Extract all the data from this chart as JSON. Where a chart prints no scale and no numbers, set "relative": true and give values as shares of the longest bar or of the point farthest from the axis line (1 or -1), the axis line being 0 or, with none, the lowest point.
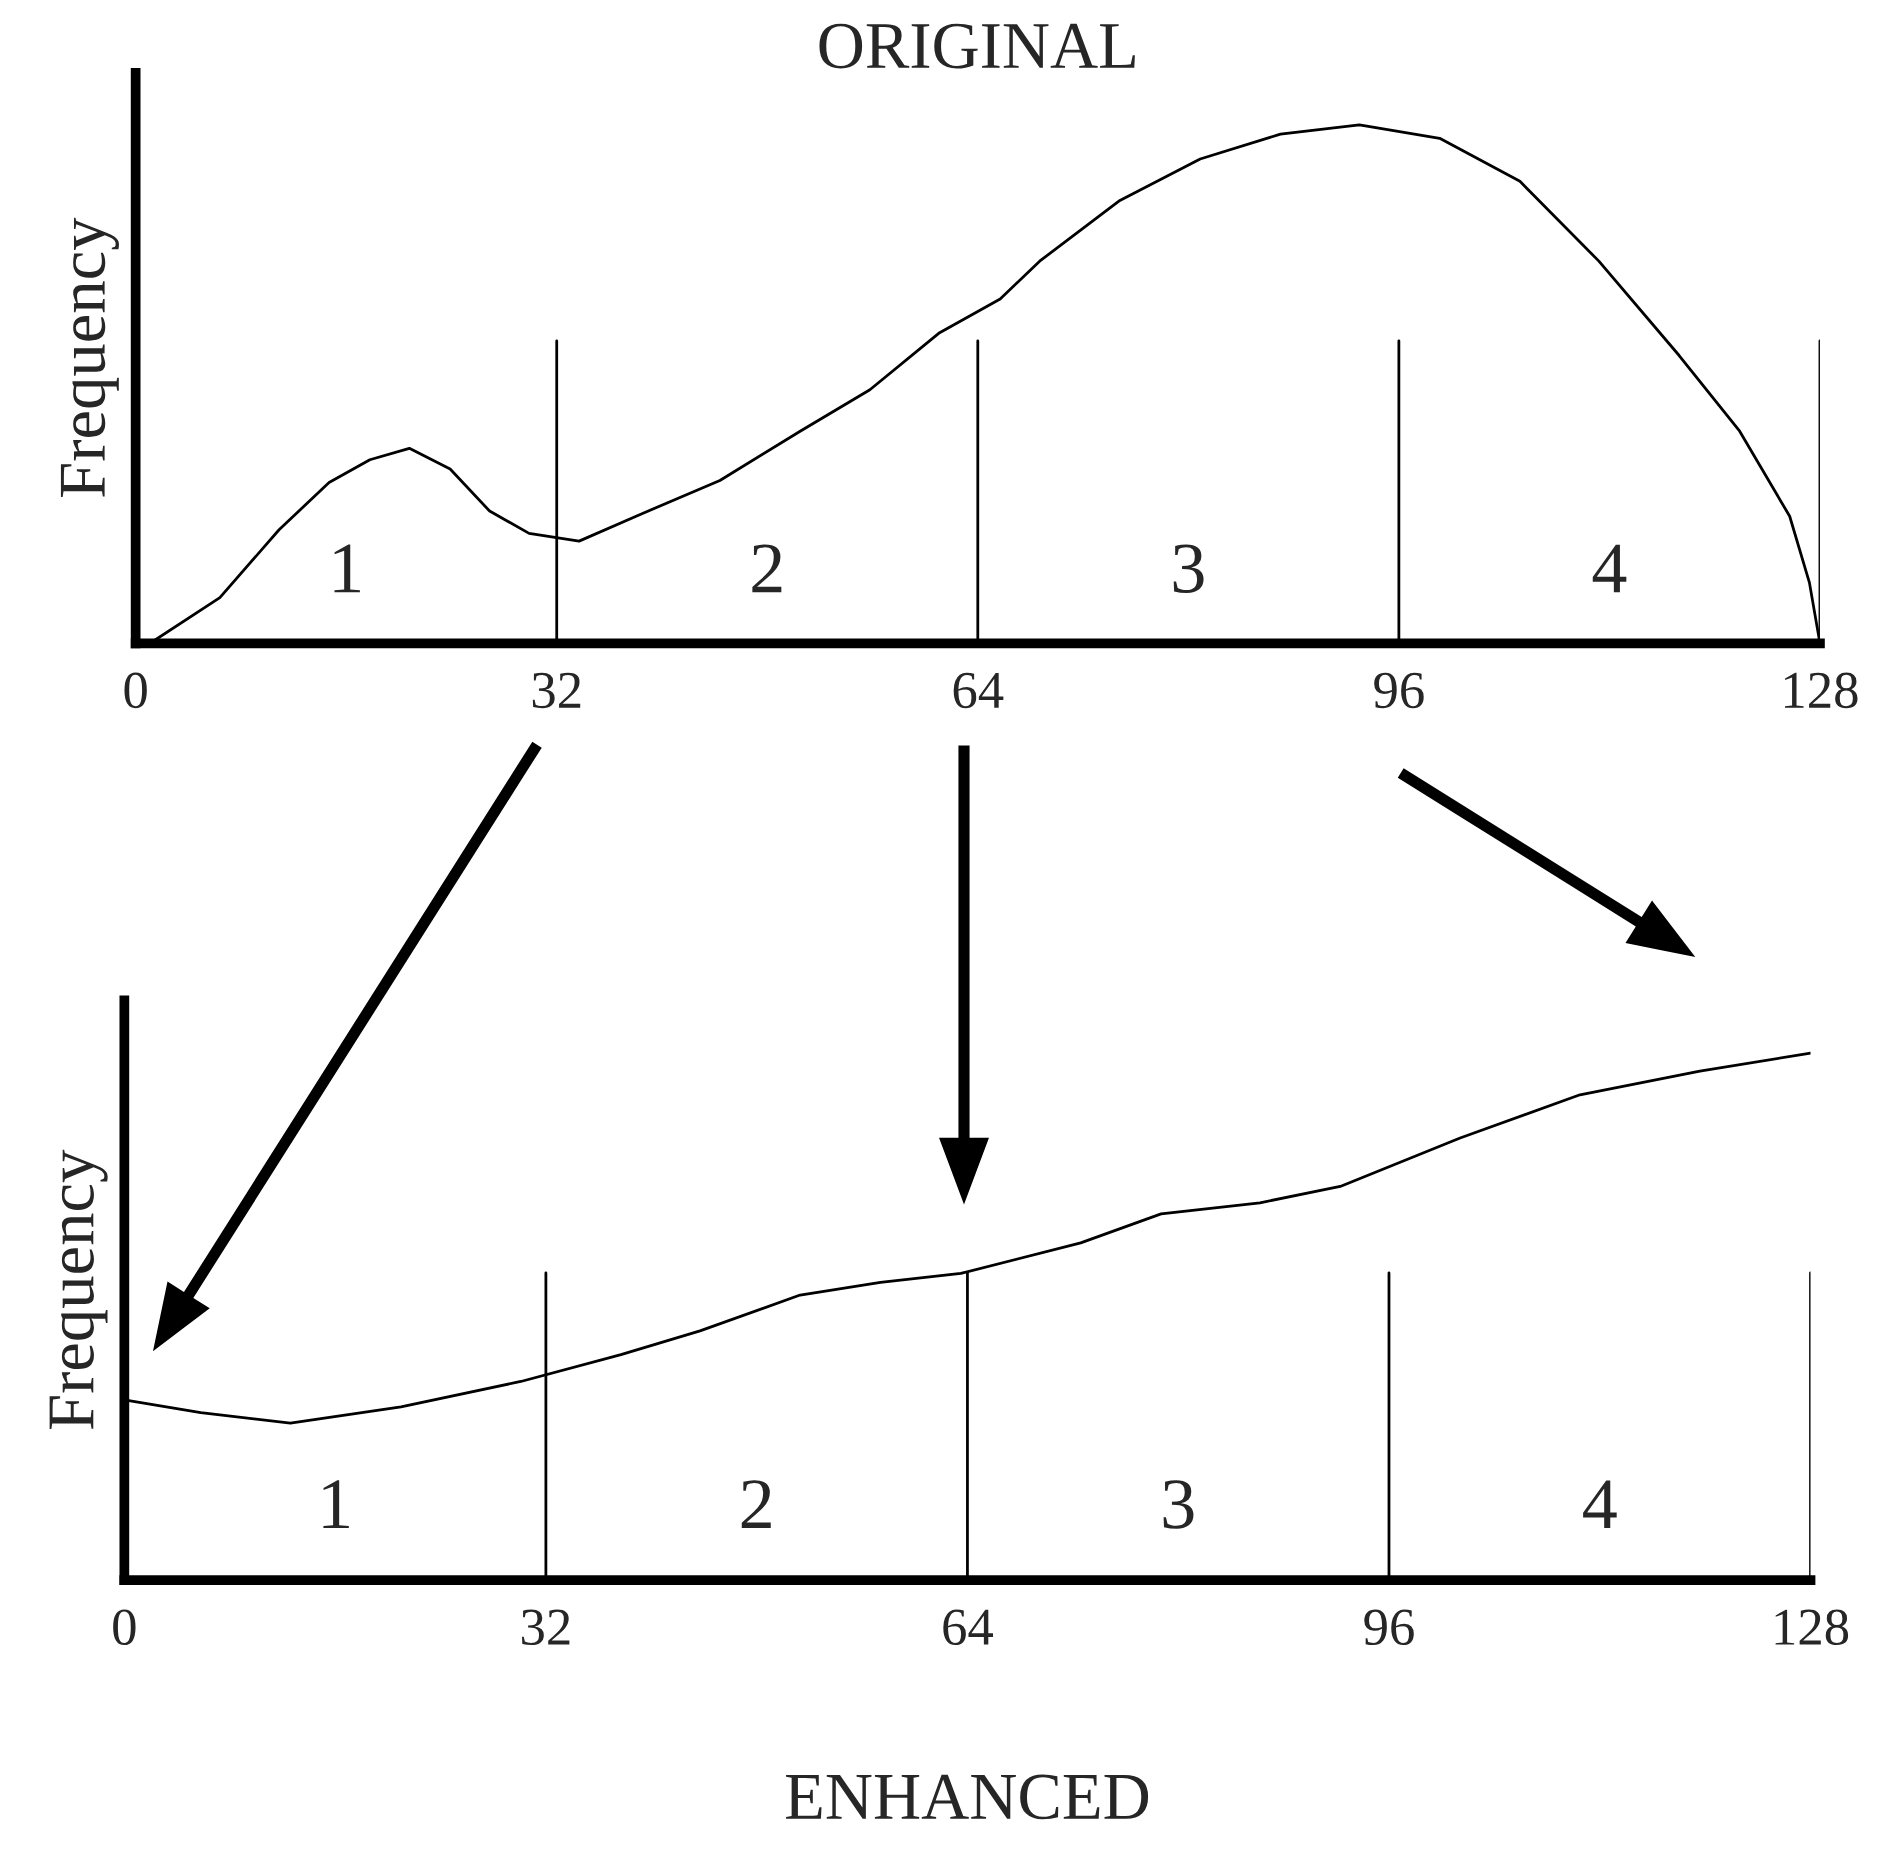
{
  "chart_data": [
    {
      "type": "line",
      "title": "ORIGINAL",
      "ylabel": "Frequency",
      "relative": true,
      "grid": false,
      "legend": false,
      "tick_labels": "x",
      "xlim": [
        0,
        128
      ],
      "xticks": [
        0,
        32,
        64,
        96,
        128
      ],
      "series": [
        {
          "color": "#000000",
          "x": [
            1.1,
            6.4,
            10.9,
            14.7,
            17.8,
            20.8,
            23.9,
            26.9,
            29.9,
            33.7,
            38.3,
            44.4,
            50.5,
            55.8,
            61.1,
            65.7,
            68.7,
            74.8,
            80.9,
            87.0,
            93.0,
            99.1,
            105.2,
            111.2,
            117.3,
            121.9,
            125.7,
            127.2,
            128
          ],
          "values": [
            0,
            0.088,
            0.219,
            0.31,
            0.354,
            0.376,
            0.336,
            0.255,
            0.212,
            0.197,
            0.248,
            0.314,
            0.409,
            0.489,
            0.599,
            0.664,
            0.737,
            0.854,
            0.934,
            0.982,
            1.0,
            0.974,
            0.891,
            0.737,
            0.555,
            0.409,
            0.245,
            0.117,
            0
          ]
        }
      ],
      "ref_lines": [
        {
          "axis": "x",
          "value": 32
        },
        {
          "axis": "x",
          "value": 64
        },
        {
          "axis": "x",
          "value": 96
        },
        {
          "axis": "x",
          "value": 128
        }
      ],
      "annotations": [
        "1",
        "2",
        "3",
        "4"
      ]
    },
    {
      "type": "line",
      "xlabel": "ENHANCED",
      "ylabel": "Frequency",
      "relative": true,
      "grid": false,
      "legend": false,
      "tick_labels": "x",
      "xlim": [
        0,
        128
      ],
      "xticks": [
        0,
        32,
        64,
        96,
        128
      ],
      "series": [
        {
          "color": "#000000",
          "x": [
            0,
            5.8,
            12.6,
            21.0,
            30.1,
            37.7,
            43.7,
            51.3,
            57.4,
            63.5,
            72.6,
            78.7,
            86.2,
            92.3,
            101.4,
            110.5,
            119.6,
            128
          ],
          "values": [
            0.342,
            0.318,
            0.298,
            0.329,
            0.377,
            0.428,
            0.473,
            0.541,
            0.565,
            0.582,
            0.64,
            0.695,
            0.716,
            0.747,
            0.839,
            0.921,
            0.966,
            1.0
          ]
        }
      ],
      "ref_lines": [
        {
          "axis": "x",
          "value": 32
        },
        {
          "axis": "x",
          "value": 64
        },
        {
          "axis": "x",
          "value": 96
        },
        {
          "axis": "x",
          "value": 128
        }
      ],
      "annotations": [
        "1",
        "2",
        "3",
        "4"
      ]
    }
  ]
}
